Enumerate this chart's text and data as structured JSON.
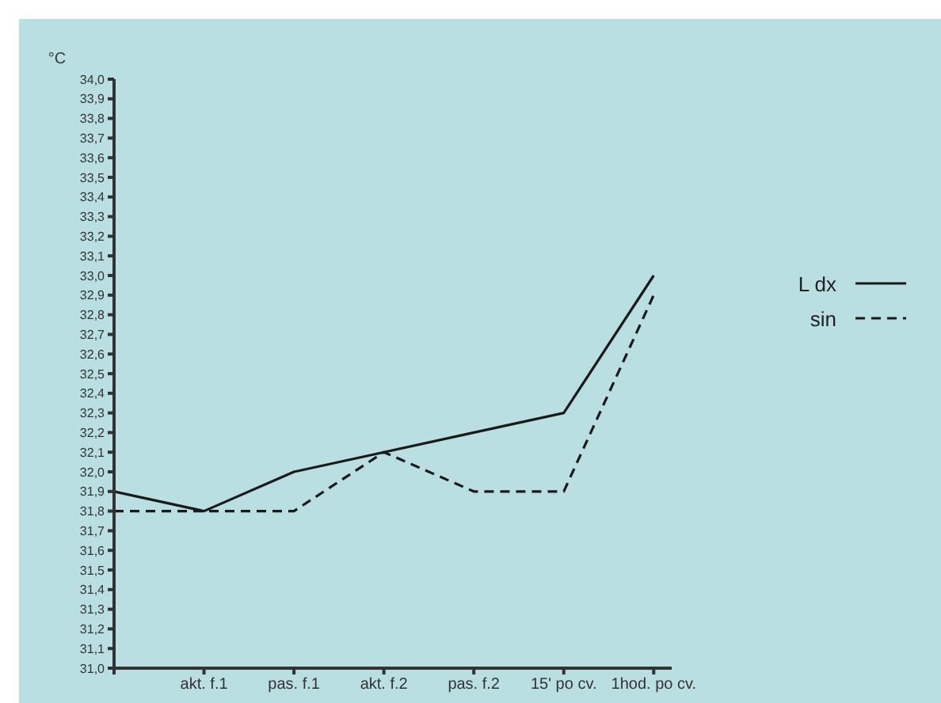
{
  "chart_data": {
    "type": "line",
    "ylabel": "°C",
    "categories": [
      null,
      "akt. f.1",
      "pas. f.1",
      "akt. f.2",
      "pas. f.2",
      "15' po cv.",
      "1hod. po cv."
    ],
    "series": [
      {
        "name": "L dx",
        "color": "#1a1a1a",
        "line_style": "solid",
        "values": [
          31.9,
          31.8,
          32.0,
          32.1,
          32.2,
          32.3,
          33.0
        ]
      },
      {
        "name": "sin",
        "color": "#1a1a1a",
        "line_style": "dashed",
        "values": [
          31.8,
          31.8,
          31.8,
          32.1,
          31.9,
          31.9,
          32.9
        ]
      }
    ],
    "ylim": [
      31.0,
      34.0
    ],
    "yticks": [
      {
        "value": 31.0,
        "label": "31,0"
      },
      {
        "value": 31.1,
        "label": "31,1"
      },
      {
        "value": 31.2,
        "label": "31,2"
      },
      {
        "value": 31.3,
        "label": "31,3"
      },
      {
        "value": 31.4,
        "label": "31,4"
      },
      {
        "value": 31.5,
        "label": "31,5"
      },
      {
        "value": 31.6,
        "label": "31,6"
      },
      {
        "value": 31.7,
        "label": "31,7"
      },
      {
        "value": 31.8,
        "label": "31,8"
      },
      {
        "value": 31.9,
        "label": "31,9"
      },
      {
        "value": 32.0,
        "label": "32,0"
      },
      {
        "value": 32.1,
        "label": "32,1"
      },
      {
        "value": 32.2,
        "label": "32,2"
      },
      {
        "value": 32.3,
        "label": "32,3"
      },
      {
        "value": 32.4,
        "label": "32,4"
      },
      {
        "value": 32.5,
        "label": "32,5"
      },
      {
        "value": 32.6,
        "label": "32,6"
      },
      {
        "value": 32.7,
        "label": "32,7"
      },
      {
        "value": 32.8,
        "label": "32,8"
      },
      {
        "value": 32.9,
        "label": "32,9"
      },
      {
        "value": 33.0,
        "label": "33,0"
      },
      {
        "value": 33.1,
        "label": "33,1"
      },
      {
        "value": 33.2,
        "label": "33,2"
      },
      {
        "value": 33.3,
        "label": "33,3"
      },
      {
        "value": 33.4,
        "label": "33,4"
      },
      {
        "value": 33.5,
        "label": "33,5"
      },
      {
        "value": 33.6,
        "label": "33,6"
      },
      {
        "value": 33.7,
        "label": "33,7"
      },
      {
        "value": 33.8,
        "label": "33,8"
      },
      {
        "value": 33.9,
        "label": "33,9"
      },
      {
        "value": 34.0,
        "label": "34,0"
      }
    ],
    "grid": false,
    "legend": "right",
    "marker": "none"
  }
}
